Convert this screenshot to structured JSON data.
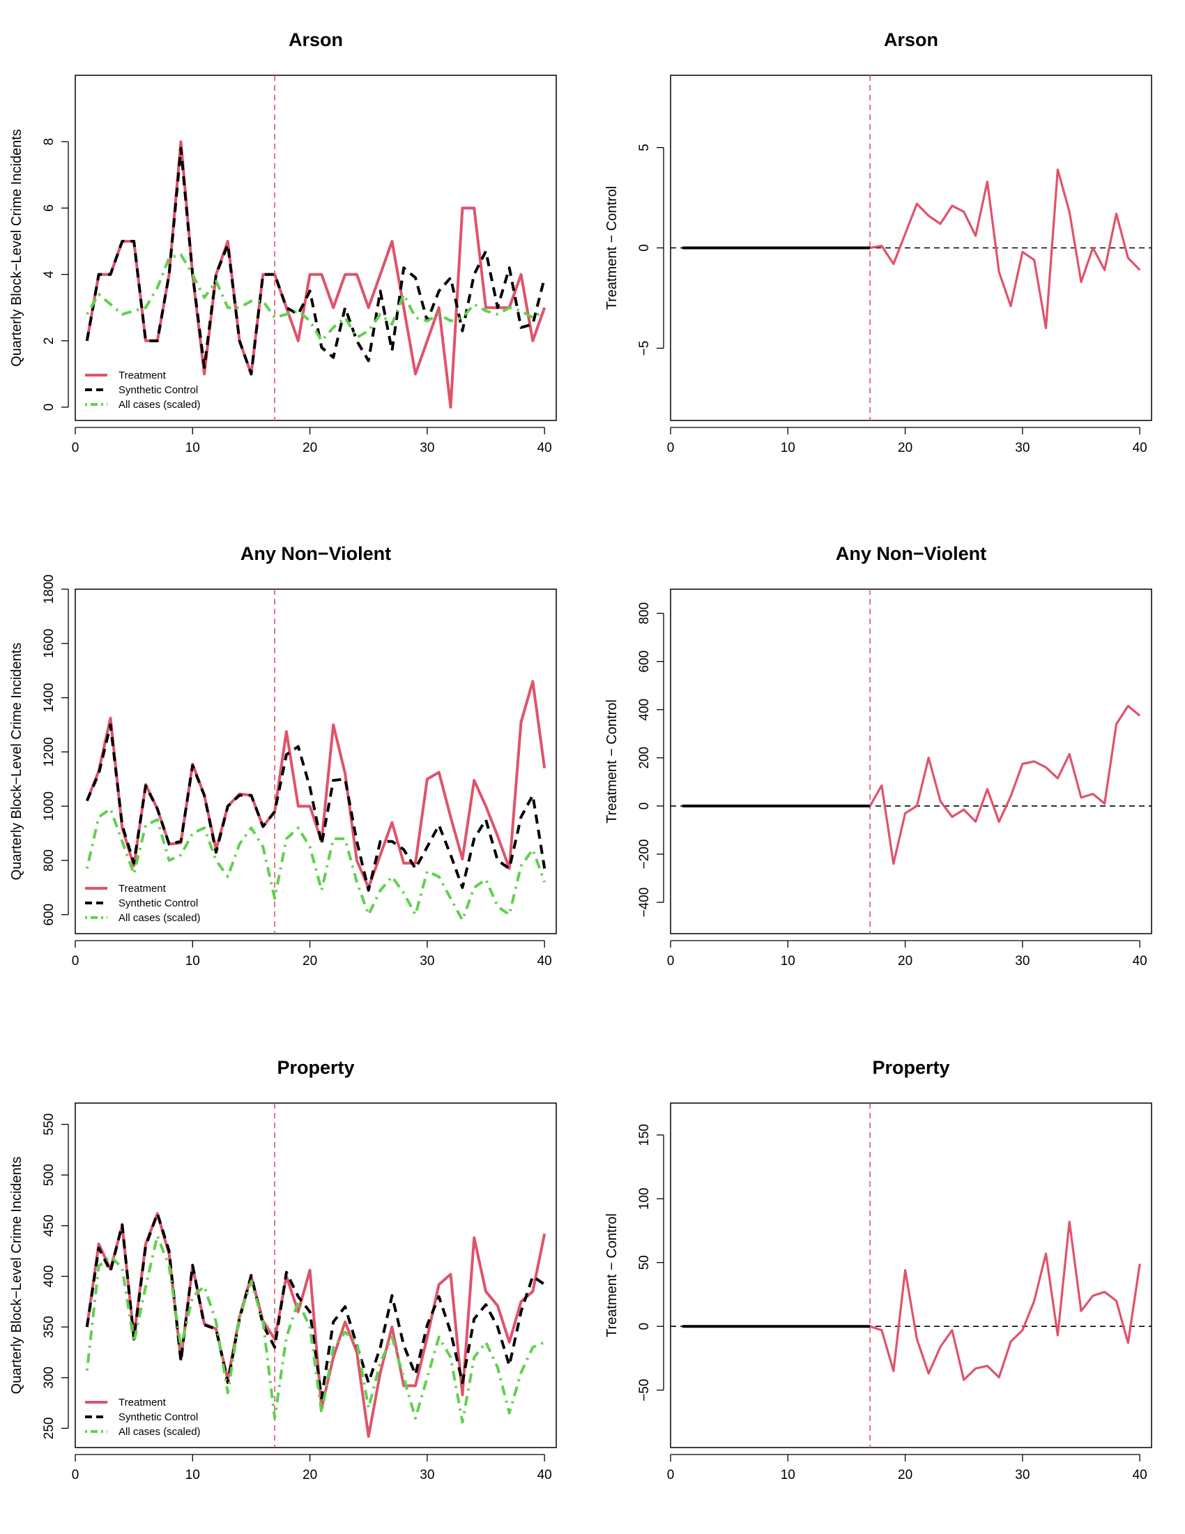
{
  "figure": {
    "layout": "3 rows x 2 columns"
  },
  "colors": {
    "treatment": "#df536b",
    "synthetic": "#000000",
    "allcases": "#61d04f",
    "vline": "#df536b",
    "zero": "#000000"
  },
  "chart_data": [
    {
      "id": "arson-levels",
      "type": "line",
      "title": "Arson",
      "xlabel": "",
      "ylabel": "Quarterly Block−Level Crime Incidents",
      "xlim": [
        0,
        41
      ],
      "ylim": [
        -0.4,
        10
      ],
      "xticks": [
        0,
        10,
        20,
        30,
        40
      ],
      "yticks": [
        0,
        2,
        4,
        6,
        8
      ],
      "vline": 17,
      "legend": {
        "position": "bottom-left",
        "entries": [
          "Treatment",
          "Synthetic Control",
          "All cases (scaled)"
        ]
      },
      "series": [
        {
          "name": "Treatment",
          "style": "solid",
          "x_start": 1,
          "values": [
            2,
            4,
            4,
            5,
            5,
            2,
            2,
            4,
            8,
            4,
            1,
            4,
            5,
            2,
            1,
            4,
            4,
            3,
            2,
            4,
            4,
            3,
            4,
            4,
            3,
            4,
            5,
            3,
            1,
            2,
            3,
            0,
            6,
            6,
            3,
            3,
            3,
            4,
            2,
            3
          ]
        },
        {
          "name": "Synthetic Control",
          "style": "dashed",
          "x_start": 1,
          "values": [
            2,
            4,
            4,
            5,
            5,
            2,
            2,
            4,
            7.8,
            4,
            1.2,
            4,
            4.9,
            2,
            1,
            4,
            4,
            3,
            2.8,
            3.5,
            1.8,
            1.5,
            3,
            2,
            1.4,
            3.5,
            1.7,
            4.2,
            3.9,
            2.6,
            3.5,
            3.9,
            2.3,
            4,
            4.7,
            3,
            4.2,
            2.4,
            2.5,
            3.9
          ]
        },
        {
          "name": "All cases (scaled)",
          "style": "dotdash",
          "x_start": 1,
          "values": [
            2.8,
            3.4,
            3.1,
            2.8,
            2.9,
            3,
            3.6,
            4.5,
            4.6,
            4,
            3.3,
            3.8,
            3,
            3,
            3.2,
            3.2,
            2.7,
            2.8,
            2.9,
            2.6,
            2,
            2.4,
            2.7,
            2.1,
            2.3,
            2.8,
            2.5,
            3.4,
            2.7,
            2.6,
            2.8,
            2.6,
            2.7,
            3.1,
            2.9,
            2.8,
            3,
            2.9,
            2.7,
            2.9
          ]
        }
      ]
    },
    {
      "id": "arson-diff",
      "type": "line",
      "title": "Arson",
      "xlabel": "",
      "ylabel": "Treatment − Control",
      "xlim": [
        0,
        41
      ],
      "ylim": [
        -8.6,
        8.6
      ],
      "xticks": [
        0,
        10,
        20,
        30,
        40
      ],
      "yticks": [
        -5,
        0,
        5
      ],
      "vline": 17,
      "hline": 0,
      "series": [
        {
          "name": "Pre-treatment",
          "style": "solid",
          "color": "synthetic",
          "x": [
            1,
            17
          ],
          "values": [
            0,
            0
          ]
        },
        {
          "name": "Post-treatment",
          "style": "solid",
          "color": "treatment",
          "x_start": 17,
          "values": [
            0,
            0.1,
            -0.8,
            0.7,
            2.2,
            1.6,
            1.2,
            2.1,
            1.8,
            0.6,
            3.3,
            -1.2,
            -2.9,
            -0.2,
            -0.6,
            -4,
            3.9,
            1.8,
            -1.7,
            0,
            -1.1,
            1.7,
            -0.5,
            -1.1
          ]
        }
      ]
    },
    {
      "id": "nonviolent-levels",
      "type": "line",
      "title": "Any Non−Violent",
      "xlabel": "",
      "ylabel": "Quarterly Block−Level Crime Incidents",
      "xlim": [
        0,
        41
      ],
      "ylim": [
        530,
        1800
      ],
      "xticks": [
        0,
        10,
        20,
        30,
        40
      ],
      "yticks": [
        600,
        800,
        1000,
        1200,
        1400,
        1600,
        1800
      ],
      "vline": 17,
      "legend": {
        "position": "bottom-left",
        "entries": [
          "Treatment",
          "Synthetic Control",
          "All cases (scaled)"
        ]
      },
      "series": [
        {
          "name": "Treatment",
          "style": "solid",
          "x_start": 1,
          "values": [
            1020,
            1130,
            1325,
            920,
            780,
            1080,
            990,
            860,
            865,
            1155,
            1040,
            840,
            1000,
            1045,
            1040,
            925,
            980,
            1275,
            1000,
            1000,
            870,
            1300,
            1120,
            800,
            700,
            820,
            940,
            790,
            790,
            1100,
            1125,
            960,
            805,
            1095,
            1000,
            890,
            770,
            1310,
            1460,
            1140
          ]
        },
        {
          "name": "Synthetic Control",
          "style": "dashed",
          "x_start": 1,
          "values": [
            1020,
            1120,
            1300,
            930,
            790,
            1075,
            990,
            860,
            870,
            1150,
            1040,
            830,
            1000,
            1040,
            1040,
            925,
            980,
            1190,
            1220,
            1070,
            860,
            1095,
            1100,
            870,
            690,
            870,
            870,
            840,
            770,
            850,
            930,
            820,
            700,
            880,
            950,
            800,
            770,
            960,
            1040,
            770
          ]
        },
        {
          "name": "All cases (scaled)",
          "style": "dotdash",
          "x_start": 1,
          "values": [
            770,
            960,
            990,
            870,
            750,
            930,
            950,
            800,
            820,
            900,
            920,
            800,
            740,
            860,
            920,
            850,
            660,
            880,
            920,
            850,
            690,
            880,
            880,
            720,
            600,
            690,
            740,
            680,
            600,
            760,
            740,
            660,
            580,
            700,
            730,
            630,
            600,
            780,
            840,
            720
          ]
        }
      ]
    },
    {
      "id": "nonviolent-diff",
      "type": "line",
      "title": "Any Non−Violent",
      "xlabel": "",
      "ylabel": "Treatment − Control",
      "xlim": [
        0,
        41
      ],
      "ylim": [
        -530,
        900
      ],
      "xticks": [
        0,
        10,
        20,
        30,
        40
      ],
      "yticks": [
        -400,
        -200,
        0,
        200,
        400,
        600,
        800
      ],
      "vline": 17,
      "hline": 0,
      "series": [
        {
          "name": "Pre-treatment",
          "style": "solid",
          "color": "synthetic",
          "x": [
            1,
            17
          ],
          "values": [
            0,
            0
          ]
        },
        {
          "name": "Post-treatment",
          "style": "solid",
          "color": "treatment",
          "x_start": 17,
          "values": [
            0,
            85,
            -240,
            -30,
            0,
            200,
            20,
            -45,
            -15,
            -65,
            70,
            -65,
            40,
            175,
            185,
            160,
            115,
            215,
            35,
            50,
            10,
            340,
            415,
            375
          ]
        }
      ]
    },
    {
      "id": "property-levels",
      "type": "line",
      "title": "Property",
      "xlabel": "",
      "ylabel": "Quarterly Block−Level Crime Incidents",
      "xlim": [
        0,
        41
      ],
      "ylim": [
        231,
        571
      ],
      "xticks": [
        0,
        10,
        20,
        30,
        40
      ],
      "yticks": [
        250,
        300,
        350,
        400,
        450,
        500,
        550
      ],
      "vline": 17,
      "legend": {
        "position": "bottom-left",
        "entries": [
          "Treatment",
          "Synthetic Control",
          "All cases (scaled)"
        ]
      },
      "series": [
        {
          "name": "Treatment",
          "style": "solid",
          "x_start": 1,
          "values": [
            350,
            432,
            407,
            450,
            340,
            432,
            462,
            422,
            318,
            410,
            353,
            348,
            298,
            360,
            400,
            356,
            338,
            400,
            365,
            406,
            270,
            320,
            355,
            325,
            242,
            305,
            350,
            292,
            292,
            340,
            392,
            402,
            283,
            438,
            385,
            371,
            335,
            375,
            385,
            442
          ]
        },
        {
          "name": "Synthetic Control",
          "style": "dashed",
          "x_start": 1,
          "values": [
            350,
            428,
            405,
            451,
            338,
            430,
            462,
            425,
            316,
            411,
            352,
            348,
            295,
            358,
            401,
            352,
            330,
            404,
            380,
            365,
            280,
            355,
            370,
            332,
            295,
            330,
            381,
            332,
            303,
            352,
            380,
            345,
            295,
            358,
            372,
            350,
            312,
            365,
            400,
            392
          ]
        },
        {
          "name": "All cases (scaled)",
          "style": "dotdash",
          "x_start": 1,
          "values": [
            307,
            410,
            420,
            408,
            335,
            390,
            440,
            410,
            330,
            380,
            390,
            355,
            285,
            360,
            395,
            355,
            260,
            340,
            375,
            350,
            265,
            330,
            345,
            335,
            270,
            315,
            340,
            300,
            260,
            300,
            340,
            320,
            256,
            320,
            335,
            310,
            265,
            305,
            330,
            335
          ]
        }
      ]
    },
    {
      "id": "property-diff",
      "type": "line",
      "title": "Property",
      "xlabel": "",
      "ylabel": "Treatment − Control",
      "xlim": [
        0,
        41
      ],
      "ylim": [
        -95,
        175
      ],
      "xticks": [
        0,
        10,
        20,
        30,
        40
      ],
      "yticks": [
        -50,
        0,
        50,
        100,
        150
      ],
      "vline": 17,
      "hline": 0,
      "series": [
        {
          "name": "Pre-treatment",
          "style": "solid",
          "color": "synthetic",
          "x": [
            1,
            17
          ],
          "values": [
            0,
            0
          ]
        },
        {
          "name": "Post-treatment",
          "style": "solid",
          "color": "treatment",
          "x_start": 17,
          "values": [
            0,
            -3,
            -35,
            44,
            -10,
            -37,
            -16,
            -3,
            -42,
            -33,
            -31,
            -40,
            -12,
            -3,
            20,
            57,
            -7,
            82,
            12,
            24,
            27,
            20,
            -13,
            49
          ]
        }
      ]
    }
  ]
}
